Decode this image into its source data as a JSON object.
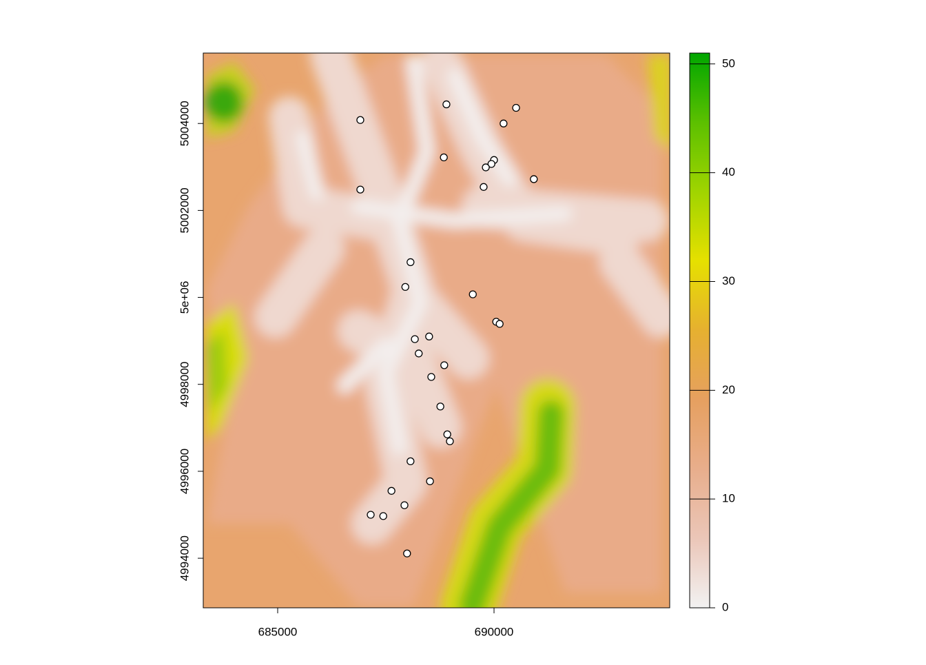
{
  "chart_data": {
    "type": "scatter",
    "x": [
      688900,
      690510,
      686910,
      690220,
      688840,
      690000,
      689940,
      689810,
      690920,
      689760,
      686910,
      688070,
      687950,
      689510,
      690050,
      690130,
      688500,
      688170,
      688260,
      688850,
      688550,
      688760,
      688920,
      688980,
      688070,
      688520,
      687630,
      687930,
      687150,
      687440,
      687990
    ],
    "y": [
      5004440,
      5004360,
      5004080,
      5004000,
      5003220,
      5003160,
      5003070,
      5002990,
      5002720,
      5002540,
      5002480,
      5000810,
      5000240,
      5000070,
      4999440,
      4999390,
      4999100,
      4999040,
      4998710,
      4998440,
      4998170,
      4997490,
      4996850,
      4996690,
      4996230,
      4995770,
      4995550,
      4995220,
      4995000,
      4994970,
      4994110
    ],
    "point_color": "#ffffff",
    "point_edge": "#000000",
    "xlim": [
      683280,
      694060
    ],
    "ylim": [
      4992860,
      5005620
    ],
    "xticks": [
      685000,
      690000
    ],
    "yticks": [
      4994000,
      4996000,
      4998000,
      {
        "value": 5000000,
        "label": "5e+06"
      },
      5002000,
      5004000
    ],
    "colorbar": {
      "lim": [
        0,
        51
      ],
      "ticks": [
        0,
        10,
        20,
        30,
        40,
        50
      ],
      "colors": [
        "#f2f2f2",
        "#ebc6b8",
        "#e8ae8c",
        "#e6a060",
        "#e6b030",
        "#e6e000",
        "#a0d400",
        "#5cc000",
        "#00a600"
      ]
    }
  }
}
